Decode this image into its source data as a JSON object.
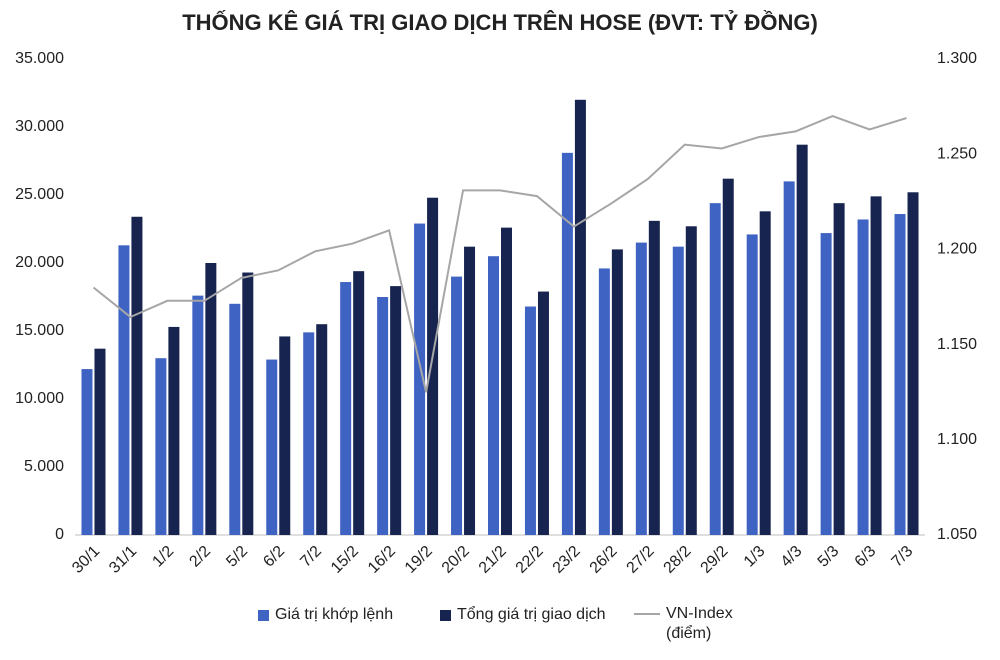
{
  "chart_data": {
    "type": "bar",
    "title": "THỐNG KÊ GIÁ TRỊ GIAO DỊCH TRÊN HOSE (ĐVT: TỶ ĐỒNG)",
    "categories": [
      "30/1",
      "31/1",
      "1/2",
      "2/2",
      "5/2",
      "6/2",
      "7/2",
      "15/2",
      "16/2",
      "19/2",
      "20/2",
      "21/2",
      "22/2",
      "23/2",
      "26/2",
      "27/2",
      "28/2",
      "29/2",
      "1/3",
      "4/3",
      "5/3",
      "6/3",
      "7/3"
    ],
    "series": [
      {
        "name": "Giá trị khớp lệnh",
        "color": "#3f63c2",
        "values": [
          12200,
          21300,
          13000,
          17600,
          17000,
          12900,
          14900,
          18600,
          17500,
          22900,
          19000,
          20500,
          16800,
          28100,
          19600,
          21500,
          21200,
          24400,
          22100,
          26000,
          22200,
          23200,
          23600
        ]
      },
      {
        "name": "Tổng giá trị giao dịch",
        "color": "#17244f",
        "values": [
          13700,
          23400,
          15300,
          20000,
          19300,
          14600,
          15500,
          19400,
          18300,
          24800,
          21200,
          22600,
          17900,
          32000,
          21000,
          23100,
          22700,
          26200,
          23800,
          28700,
          24400,
          24900,
          25200
        ]
      },
      {
        "name": "VN-Index (điểm)",
        "color": "#a6a6a6",
        "axis": "y2",
        "values": [
          1180,
          1164.5,
          1173,
          1173,
          1185,
          1189,
          1199,
          1203,
          1210,
          1125,
          1231,
          1231,
          1228,
          1212,
          1224,
          1237,
          1255,
          1253,
          1259,
          1262,
          1270,
          1263,
          1269
        ]
      }
    ],
    "ylim": [
      0,
      35000
    ],
    "yticks": [
      0,
      {
        "value": 5000,
        "label": "5.000"
      },
      {
        "value": 10000,
        "label": "10.000"
      },
      {
        "value": 15000,
        "label": "15.000"
      },
      {
        "value": 20000,
        "label": "20.000"
      },
      {
        "value": 25000,
        "label": "25.000"
      },
      {
        "value": 30000,
        "label": "30.000"
      },
      {
        "value": 35000,
        "label": "35.000"
      }
    ],
    "y2lim": [
      1050,
      1300
    ],
    "y2ticks": [
      {
        "value": 1050,
        "label": "1.050"
      },
      {
        "value": 1100,
        "label": "1.100"
      },
      {
        "value": 1150,
        "label": "1.150"
      },
      {
        "value": 1200,
        "label": "1.200"
      },
      {
        "value": 1250,
        "label": "1.250"
      },
      {
        "value": 1300,
        "label": "1.300"
      }
    ],
    "grid": false
  }
}
